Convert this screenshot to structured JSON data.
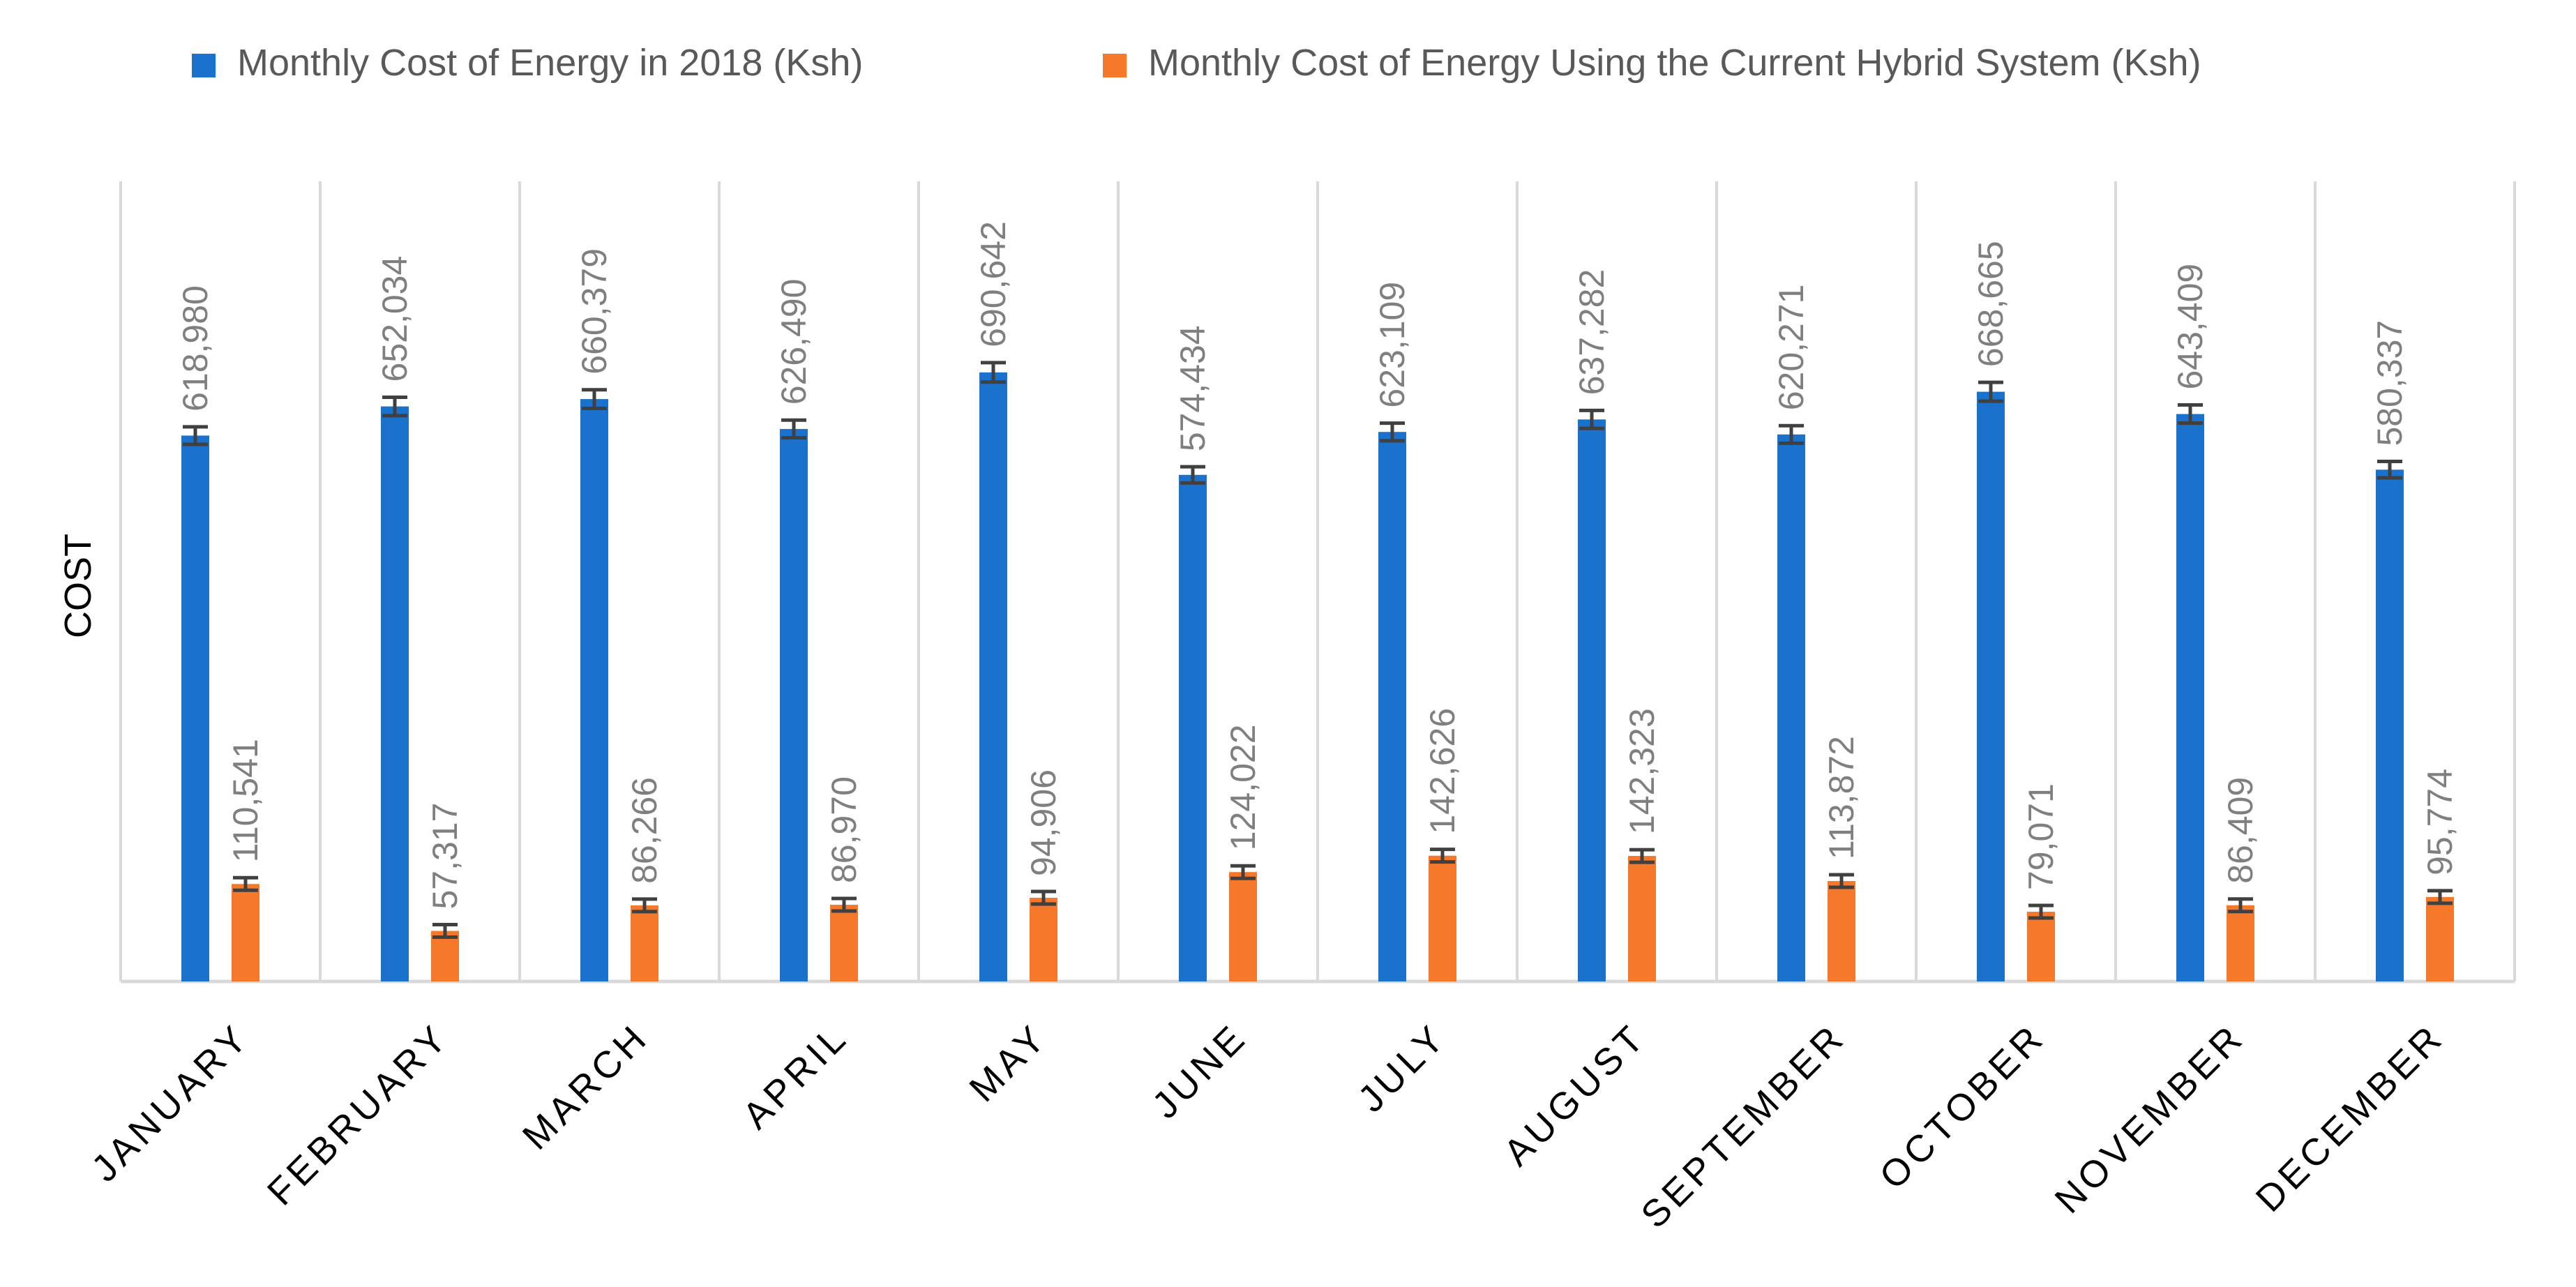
{
  "chart_data": {
    "type": "bar",
    "title": "",
    "xlabel": "",
    "ylabel": "COST",
    "ylim": [
      0,
      700000
    ],
    "grid": "vertical category separators",
    "legend_position": "top",
    "error_bars": true,
    "categories": [
      "JANUARY",
      "FEBRUARY",
      "MARCH",
      "APRIL",
      "MAY",
      "JUNE",
      "JULY",
      "AUGUST",
      "SEPTEMBER",
      "OCTOBER",
      "NOVEMBER",
      "DECEMBER"
    ],
    "series": [
      {
        "name": "Monthly Cost of Energy in 2018 (Ksh)",
        "color": "#1b72cc",
        "values": [
          618980,
          652034,
          660379,
          626490,
          690642,
          574434,
          623109,
          637282,
          620271,
          668665,
          643409,
          580337
        ],
        "labels": [
          "618,980",
          "652,034",
          "660,379",
          "626,490",
          "690,642",
          "574,434",
          "623,109",
          "637,282",
          "620,271",
          "668,665",
          "643,409",
          "580,337"
        ]
      },
      {
        "name": "Monthly Cost of Energy Using the Current Hybrid System (Ksh)",
        "color": "#f6782a",
        "values": [
          110541,
          57317,
          86266,
          86970,
          94906,
          124022,
          142626,
          142323,
          113872,
          79071,
          86409,
          95774
        ],
        "labels": [
          "110,541",
          "57,317",
          "86,266",
          "86,970",
          "94,906",
          "124,022",
          "142,626",
          "142,323",
          "113,872",
          "79,071",
          "86,409",
          "95,774"
        ]
      }
    ]
  }
}
